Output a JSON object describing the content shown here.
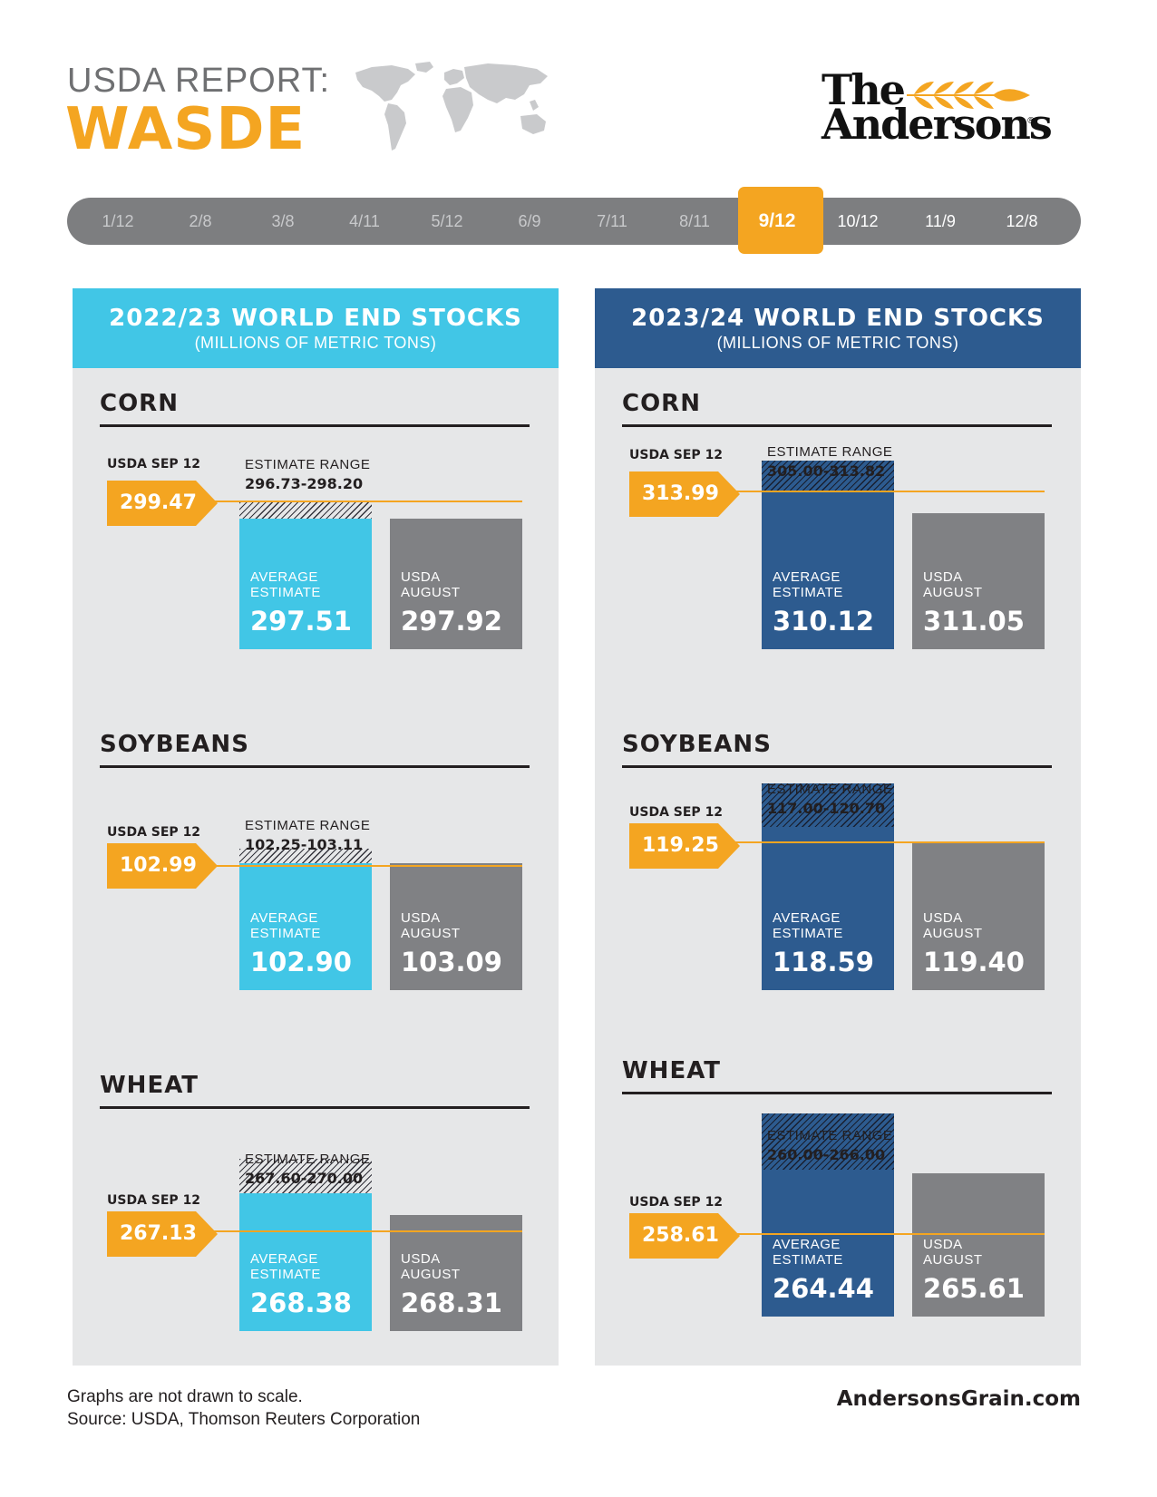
{
  "header": {
    "line1": "USDA REPORT:",
    "line2": "WASDE",
    "logo_line1": "The",
    "logo_line2": "Andersons",
    "logo_mark": "®"
  },
  "timeline": {
    "items": [
      "1/12",
      "2/8",
      "3/8",
      "4/11",
      "5/12",
      "6/9",
      "7/11",
      "8/11",
      "9/12",
      "10/12",
      "11/9",
      "12/8"
    ],
    "active": "9/12"
  },
  "labels": {
    "usda": "USDA SEP 12",
    "range": "ESTIMATE RANGE",
    "avg1": "AVERAGE",
    "avg2": "ESTIMATE",
    "aug1": "USDA",
    "aug2": "AUGUST"
  },
  "colors": {
    "orange": "#f4a521",
    "cyan": "#41c6e6",
    "navy": "#2d5b8f",
    "gray_bar": "#808184",
    "panel_bg": "#e6e7e8"
  },
  "chart_data": [
    {
      "type": "bar",
      "title": "2022/23 WORLD END STOCKS",
      "subtitle": "(MILLIONS OF METRIC TONS)",
      "groups": [
        {
          "name": "CORN",
          "usda_sep12": "299.47",
          "estimate_range": "296.73-298.20",
          "range_low": 296.73,
          "range_high": 298.2,
          "average_estimate": "297.51",
          "usda_august": "297.92"
        },
        {
          "name": "SOYBEANS",
          "usda_sep12": "102.99",
          "estimate_range": "102.25-103.11",
          "range_low": 102.25,
          "range_high": 103.11,
          "average_estimate": "102.90",
          "usda_august": "103.09"
        },
        {
          "name": "WHEAT",
          "usda_sep12": "267.13",
          "estimate_range": "267.60-270.00",
          "range_low": 267.6,
          "range_high": 270.0,
          "average_estimate": "268.38",
          "usda_august": "268.31"
        }
      ]
    },
    {
      "type": "bar",
      "title": "2023/24 WORLD END STOCKS",
      "subtitle": "(MILLIONS OF METRIC TONS)",
      "groups": [
        {
          "name": "CORN",
          "usda_sep12": "313.99",
          "estimate_range": "305.00-313.82",
          "range_low": 305.0,
          "range_high": 313.82,
          "average_estimate": "310.12",
          "usda_august": "311.05"
        },
        {
          "name": "SOYBEANS",
          "usda_sep12": "119.25",
          "estimate_range": "117.00-120.70",
          "range_low": 117.0,
          "range_high": 120.7,
          "average_estimate": "118.59",
          "usda_august": "119.40"
        },
        {
          "name": "WHEAT",
          "usda_sep12": "258.61",
          "estimate_range": "260.00-266.00",
          "range_low": 260.0,
          "range_high": 266.0,
          "average_estimate": "264.44",
          "usda_august": "265.61"
        }
      ]
    }
  ],
  "footer": {
    "note": "Graphs are not drawn to scale.",
    "source": "Source: USDA, Thomson Reuters Corporation",
    "site": "AndersonsGrain.com"
  }
}
